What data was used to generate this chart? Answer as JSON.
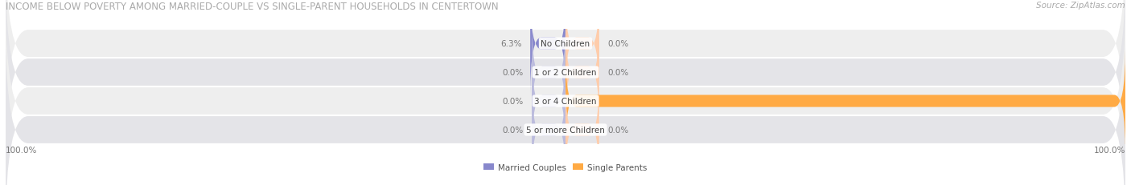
{
  "title": "INCOME BELOW POVERTY AMONG MARRIED-COUPLE VS SINGLE-PARENT HOUSEHOLDS IN CENTERTOWN",
  "source": "Source: ZipAtlas.com",
  "categories": [
    "No Children",
    "1 or 2 Children",
    "3 or 4 Children",
    "5 or more Children"
  ],
  "married_values": [
    6.3,
    0.0,
    0.0,
    0.0
  ],
  "single_values": [
    0.0,
    0.0,
    100.0,
    0.0
  ],
  "married_color": "#8888cc",
  "single_color": "#ffaa44",
  "married_color_light": "#bbbbdd",
  "single_color_light": "#ffccaa",
  "row_bg_odd": "#eeeeee",
  "row_bg_even": "#e4e4e8",
  "title_color": "#aaaaaa",
  "value_color": "#777777",
  "category_color": "#444444",
  "max_value": 100.0,
  "axis_left_label": "100.0%",
  "axis_right_label": "100.0%",
  "legend_married": "Married Couples",
  "legend_single": "Single Parents",
  "title_fontsize": 8.5,
  "source_fontsize": 7.5,
  "category_fontsize": 7.5,
  "value_fontsize": 7.5,
  "stub_size": 6.0
}
